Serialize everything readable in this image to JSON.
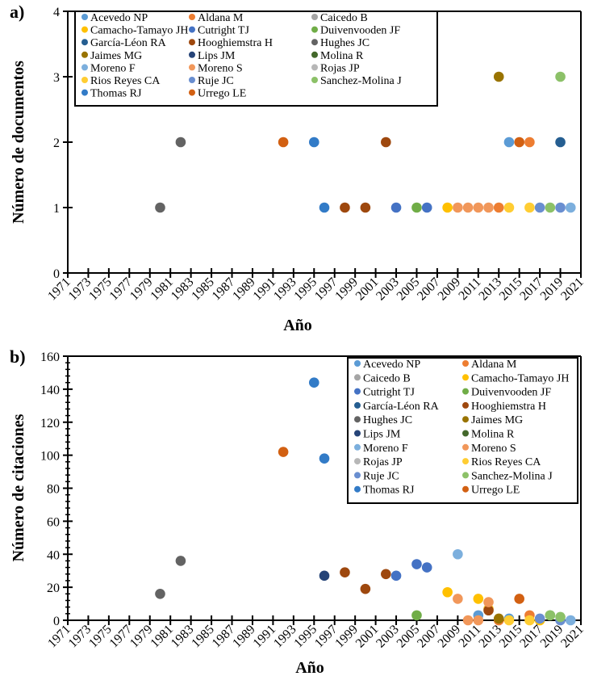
{
  "authors": [
    {
      "name": "Acevedo NP",
      "color": "#5B9BD5"
    },
    {
      "name": "Aldana M",
      "color": "#ED7D31"
    },
    {
      "name": "Caicedo B",
      "color": "#A5A5A5"
    },
    {
      "name": "Camacho-Tamayo JH",
      "color": "#FFC000"
    },
    {
      "name": "Cutright TJ",
      "color": "#4472C4"
    },
    {
      "name": "Duivenvooden JF",
      "color": "#70AD47"
    },
    {
      "name": "García-Léon RA",
      "color": "#255E91"
    },
    {
      "name": "Hooghiemstra H",
      "color": "#9E480E"
    },
    {
      "name": "Hughes JC",
      "color": "#636363"
    },
    {
      "name": "Jaimes MG",
      "color": "#997300"
    },
    {
      "name": "Lips JM",
      "color": "#264478"
    },
    {
      "name": "Molina R",
      "color": "#43682B"
    },
    {
      "name": "Moreno F",
      "color": "#7CAFDD"
    },
    {
      "name": "Moreno S",
      "color": "#F1975A"
    },
    {
      "name": "Rojas JP",
      "color": "#B7B7B7"
    },
    {
      "name": "Rios Reyes CA",
      "color": "#FFCD33"
    },
    {
      "name": "Ruje JC",
      "color": "#698ED0"
    },
    {
      "name": "Sanchez-Molina J",
      "color": "#8CC168"
    },
    {
      "name": "Thomas RJ",
      "color": "#327BC7"
    },
    {
      "name": "Urrego LE",
      "color": "#D26012"
    }
  ],
  "chart_data": [
    {
      "id": "a",
      "panel_label": "a)",
      "type": "scatter",
      "title": "",
      "xlabel": "Año",
      "ylabel": "Número de documentos",
      "xlim": [
        1971,
        2021
      ],
      "ylim": [
        0,
        4
      ],
      "yticks": [
        0,
        1,
        2,
        3,
        4
      ],
      "xticks": [
        1971,
        1973,
        1975,
        1977,
        1979,
        1981,
        1983,
        1985,
        1987,
        1989,
        1991,
        1993,
        1995,
        1997,
        1999,
        2001,
        2003,
        2005,
        2007,
        2009,
        2011,
        2013,
        2015,
        2017,
        2019,
        2021
      ],
      "y_minor_ticks": false,
      "grid": false,
      "legend": {
        "placement": "top-left",
        "columns": 3
      },
      "points": [
        {
          "author": "Hughes JC",
          "x": 1980,
          "y": 1
        },
        {
          "author": "Hughes JC",
          "x": 1982,
          "y": 2
        },
        {
          "author": "Urrego LE",
          "x": 1992,
          "y": 2
        },
        {
          "author": "Thomas RJ",
          "x": 1995,
          "y": 2
        },
        {
          "author": "Thomas RJ",
          "x": 1996,
          "y": 1
        },
        {
          "author": "Hooghiemstra H",
          "x": 1998,
          "y": 1
        },
        {
          "author": "Hooghiemstra H",
          "x": 2000,
          "y": 1
        },
        {
          "author": "Hooghiemstra H",
          "x": 2002,
          "y": 2
        },
        {
          "author": "Cutright TJ",
          "x": 2003,
          "y": 1
        },
        {
          "author": "Duivenvooden JF",
          "x": 2005,
          "y": 1
        },
        {
          "author": "Cutright TJ",
          "x": 2006,
          "y": 1
        },
        {
          "author": "Camacho-Tamayo JH",
          "x": 2008,
          "y": 1
        },
        {
          "author": "Moreno S",
          "x": 2009,
          "y": 1
        },
        {
          "author": "Moreno S",
          "x": 2010,
          "y": 1
        },
        {
          "author": "Moreno S",
          "x": 2011,
          "y": 1
        },
        {
          "author": "Moreno S",
          "x": 2012,
          "y": 1
        },
        {
          "author": "Aldana M",
          "x": 2013,
          "y": 1
        },
        {
          "author": "Jaimes MG",
          "x": 2013,
          "y": 3
        },
        {
          "author": "Rios Reyes CA",
          "x": 2014,
          "y": 1
        },
        {
          "author": "Acevedo NP",
          "x": 2014,
          "y": 2
        },
        {
          "author": "Urrego LE",
          "x": 2015,
          "y": 2
        },
        {
          "author": "Aldana M",
          "x": 2016,
          "y": 2
        },
        {
          "author": "Rios Reyes CA",
          "x": 2016,
          "y": 1
        },
        {
          "author": "Ruje JC",
          "x": 2017,
          "y": 1
        },
        {
          "author": "Sanchez-Molina J",
          "x": 2018,
          "y": 1
        },
        {
          "author": "Ruje JC",
          "x": 2019,
          "y": 1
        },
        {
          "author": "García-Léon RA",
          "x": 2019,
          "y": 2
        },
        {
          "author": "Sanchez-Molina J",
          "x": 2019,
          "y": 3
        },
        {
          "author": "Moreno F",
          "x": 2020,
          "y": 1
        }
      ]
    },
    {
      "id": "b",
      "panel_label": "b)",
      "type": "scatter",
      "title": "",
      "xlabel": "Año",
      "ylabel": "Número de citaciones",
      "xlim": [
        1971,
        2021
      ],
      "ylim": [
        0,
        160
      ],
      "yticks": [
        0,
        20,
        40,
        60,
        80,
        100,
        120,
        140,
        160
      ],
      "xticks": [
        1971,
        1973,
        1975,
        1977,
        1979,
        1981,
        1983,
        1985,
        1987,
        1989,
        1991,
        1993,
        1995,
        1997,
        1999,
        2001,
        2003,
        2005,
        2007,
        2009,
        2011,
        2013,
        2015,
        2017,
        2019,
        2021
      ],
      "y_minor_ticks": true,
      "grid": false,
      "legend": {
        "placement": "top-right",
        "columns": 2
      },
      "points": [
        {
          "author": "Hughes JC",
          "x": 1980,
          "y": 16
        },
        {
          "author": "Hughes JC",
          "x": 1982,
          "y": 36
        },
        {
          "author": "Urrego LE",
          "x": 1992,
          "y": 102
        },
        {
          "author": "Thomas RJ",
          "x": 1995,
          "y": 144
        },
        {
          "author": "Thomas RJ",
          "x": 1996,
          "y": 98
        },
        {
          "author": "Lips JM",
          "x": 1996,
          "y": 27
        },
        {
          "author": "Hooghiemstra H",
          "x": 1998,
          "y": 29
        },
        {
          "author": "Hooghiemstra H",
          "x": 2000,
          "y": 19
        },
        {
          "author": "Hooghiemstra H",
          "x": 2002,
          "y": 28
        },
        {
          "author": "Cutright TJ",
          "x": 2003,
          "y": 27
        },
        {
          "author": "Cutright TJ",
          "x": 2005,
          "y": 34
        },
        {
          "author": "Duivenvooden JF",
          "x": 2005,
          "y": 3
        },
        {
          "author": "Cutright TJ",
          "x": 2006,
          "y": 32
        },
        {
          "author": "Camacho-Tamayo JH",
          "x": 2008,
          "y": 17
        },
        {
          "author": "Moreno F",
          "x": 2009,
          "y": 40
        },
        {
          "author": "Moreno S",
          "x": 2009,
          "y": 13
        },
        {
          "author": "Moreno S",
          "x": 2010,
          "y": 0
        },
        {
          "author": "Acevedo NP",
          "x": 2011,
          "y": 3
        },
        {
          "author": "Camacho-Tamayo JH",
          "x": 2011,
          "y": 13
        },
        {
          "author": "Moreno S",
          "x": 2011,
          "y": 0
        },
        {
          "author": "Rios Reyes CA",
          "x": 2012,
          "y": 7
        },
        {
          "author": "Hooghiemstra H",
          "x": 2012,
          "y": 6
        },
        {
          "author": "Moreno S",
          "x": 2012,
          "y": 11
        },
        {
          "author": "Aldana M",
          "x": 2013,
          "y": 0
        },
        {
          "author": "Jaimes MG",
          "x": 2013,
          "y": 1
        },
        {
          "author": "Acevedo NP",
          "x": 2014,
          "y": 1
        },
        {
          "author": "Rios Reyes CA",
          "x": 2014,
          "y": 0
        },
        {
          "author": "Urrego LE",
          "x": 2015,
          "y": 13
        },
        {
          "author": "Aldana M",
          "x": 2016,
          "y": 3
        },
        {
          "author": "Rios Reyes CA",
          "x": 2016,
          "y": 0
        },
        {
          "author": "Camacho-Tamayo JH",
          "x": 2017,
          "y": 0
        },
        {
          "author": "Ruje JC",
          "x": 2017,
          "y": 1
        },
        {
          "author": "Duivenvooden JF",
          "x": 2018,
          "y": 3
        },
        {
          "author": "Sanchez-Molina J",
          "x": 2018,
          "y": 3
        },
        {
          "author": "Ruje JC",
          "x": 2019,
          "y": 0
        },
        {
          "author": "Sanchez-Molina J",
          "x": 2019,
          "y": 2
        },
        {
          "author": "Moreno F",
          "x": 2020,
          "y": 0
        }
      ]
    }
  ]
}
